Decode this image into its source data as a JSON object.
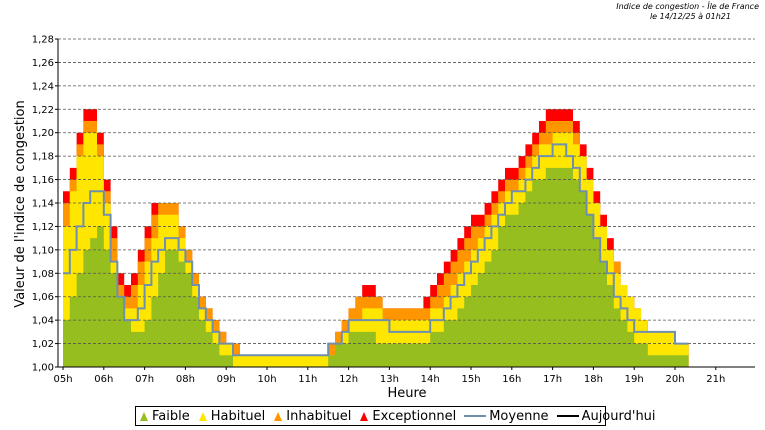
{
  "header": {
    "line1": "Indice de congestion -  Île de France",
    "line2": "le 14/12/25 à 01h21"
  },
  "legend": {
    "items": [
      {
        "label": "Faible",
        "kind": "triangle",
        "color": "#96be1e"
      },
      {
        "label": "Habituel",
        "kind": "triangle",
        "color": "#ffe600"
      },
      {
        "label": "Inhabituel",
        "kind": "triangle",
        "color": "#ff9600"
      },
      {
        "label": "Exceptionnel",
        "kind": "triangle",
        "color": "#ff0000"
      },
      {
        "label": "Moyenne",
        "kind": "line",
        "color": "#6f8faf"
      },
      {
        "label": "Aujourd'hui",
        "kind": "line",
        "color": "#000000"
      }
    ]
  },
  "chart_data": {
    "type": "area",
    "xlabel": "Heure",
    "ylabel": "Valeur de l'indice de congestion",
    "ylim": [
      1.0,
      1.28
    ],
    "xlim": [
      "05h00",
      "21h55"
    ],
    "grid": true,
    "legend_position": "bottom",
    "yticks": [
      "1,00",
      "1,02",
      "1,04",
      "1,06",
      "1,08",
      "1,10",
      "1,12",
      "1,14",
      "1,16",
      "1,18",
      "1,20",
      "1,22",
      "1,24",
      "1,26",
      "1,28"
    ],
    "xticks": [
      "05h",
      "06h",
      "07h",
      "08h",
      "09h",
      "10h",
      "11h",
      "12h",
      "13h",
      "14h",
      "15h",
      "16h",
      "17h",
      "18h",
      "19h",
      "20h",
      "21h"
    ],
    "x_step_minutes": 10,
    "x_start": "05h00",
    "colors": {
      "faible": "#96be1e",
      "habituel": "#ffe600",
      "inhabituel": "#ff9600",
      "exceptionnel": "#ff0000",
      "moyenne": "#6f8faf"
    },
    "series": [
      {
        "name": "Faible",
        "values": [
          1.04,
          1.06,
          1.08,
          1.1,
          1.11,
          1.12,
          1.1,
          1.08,
          1.06,
          1.04,
          1.03,
          1.03,
          1.04,
          1.06,
          1.08,
          1.1,
          1.1,
          1.09,
          1.08,
          1.06,
          1.04,
          1.03,
          1.02,
          1.01,
          1.01,
          1.0,
          1.0,
          1.0,
          1.0,
          1.0,
          1.0,
          1.0,
          1.0,
          1.0,
          1.0,
          1.0,
          1.0,
          1.0,
          1.0,
          1.01,
          1.02,
          1.02,
          1.03,
          1.03,
          1.03,
          1.03,
          1.02,
          1.02,
          1.02,
          1.02,
          1.02,
          1.02,
          1.02,
          1.02,
          1.03,
          1.03,
          1.04,
          1.04,
          1.05,
          1.06,
          1.07,
          1.08,
          1.09,
          1.1,
          1.12,
          1.13,
          1.13,
          1.14,
          1.15,
          1.16,
          1.16,
          1.17,
          1.17,
          1.17,
          1.17,
          1.16,
          1.15,
          1.13,
          1.11,
          1.09,
          1.07,
          1.05,
          1.04,
          1.03,
          1.02,
          1.02,
          1.01,
          1.01,
          1.01,
          1.01,
          1.01,
          1.01
        ]
      },
      {
        "name": "Habituel",
        "values": [
          1.12,
          1.15,
          1.18,
          1.2,
          1.2,
          1.18,
          1.14,
          1.09,
          1.06,
          1.05,
          1.05,
          1.07,
          1.09,
          1.11,
          1.13,
          1.13,
          1.13,
          1.11,
          1.09,
          1.07,
          1.05,
          1.04,
          1.03,
          1.02,
          1.02,
          1.01,
          1.01,
          1.01,
          1.01,
          1.01,
          1.01,
          1.01,
          1.01,
          1.01,
          1.01,
          1.01,
          1.01,
          1.01,
          1.01,
          1.01,
          1.02,
          1.03,
          1.04,
          1.04,
          1.05,
          1.05,
          1.05,
          1.04,
          1.04,
          1.04,
          1.04,
          1.04,
          1.04,
          1.04,
          1.05,
          1.05,
          1.06,
          1.07,
          1.08,
          1.09,
          1.1,
          1.11,
          1.12,
          1.13,
          1.14,
          1.15,
          1.15,
          1.16,
          1.17,
          1.18,
          1.19,
          1.19,
          1.2,
          1.2,
          1.2,
          1.19,
          1.18,
          1.16,
          1.14,
          1.12,
          1.1,
          1.08,
          1.07,
          1.06,
          1.05,
          1.04,
          1.03,
          1.03,
          1.03,
          1.03,
          1.02,
          1.02
        ]
      },
      {
        "name": "Inhabituel",
        "values": [
          1.14,
          1.16,
          1.19,
          1.21,
          1.21,
          1.19,
          1.15,
          1.11,
          1.07,
          1.06,
          1.07,
          1.09,
          1.11,
          1.13,
          1.14,
          1.14,
          1.14,
          1.12,
          1.1,
          1.08,
          1.06,
          1.05,
          1.04,
          1.03,
          1.02,
          1.02,
          1.01,
          1.01,
          1.01,
          1.01,
          1.01,
          1.01,
          1.01,
          1.01,
          1.01,
          1.01,
          1.01,
          1.01,
          1.01,
          1.02,
          1.03,
          1.04,
          1.05,
          1.06,
          1.06,
          1.06,
          1.06,
          1.05,
          1.05,
          1.05,
          1.05,
          1.05,
          1.05,
          1.05,
          1.06,
          1.07,
          1.08,
          1.09,
          1.1,
          1.11,
          1.12,
          1.12,
          1.13,
          1.14,
          1.15,
          1.16,
          1.16,
          1.17,
          1.18,
          1.19,
          1.2,
          1.21,
          1.21,
          1.21,
          1.21,
          1.2,
          1.18,
          1.16,
          1.14,
          1.12,
          1.1,
          1.09,
          1.07,
          1.06,
          1.05,
          1.04,
          1.03,
          1.03,
          1.03,
          1.03,
          1.02,
          1.02
        ]
      },
      {
        "name": "Exceptionnel",
        "values": [
          1.15,
          1.17,
          1.2,
          1.22,
          1.22,
          1.2,
          1.16,
          1.12,
          1.08,
          1.07,
          1.08,
          1.1,
          1.12,
          1.14,
          1.14,
          1.14,
          1.14,
          1.12,
          1.1,
          1.08,
          1.06,
          1.05,
          1.04,
          1.03,
          1.02,
          1.02,
          1.01,
          1.01,
          1.01,
          1.01,
          1.01,
          1.01,
          1.01,
          1.01,
          1.01,
          1.01,
          1.01,
          1.01,
          1.01,
          1.02,
          1.03,
          1.04,
          1.05,
          1.06,
          1.07,
          1.07,
          1.06,
          1.05,
          1.05,
          1.05,
          1.05,
          1.05,
          1.05,
          1.06,
          1.07,
          1.08,
          1.09,
          1.1,
          1.11,
          1.12,
          1.13,
          1.13,
          1.14,
          1.15,
          1.16,
          1.17,
          1.17,
          1.18,
          1.19,
          1.2,
          1.21,
          1.22,
          1.22,
          1.22,
          1.22,
          1.21,
          1.19,
          1.17,
          1.15,
          1.13,
          1.11,
          1.09,
          1.07,
          1.06,
          1.05,
          1.04,
          1.03,
          1.03,
          1.03,
          1.03,
          1.02,
          1.02
        ]
      },
      {
        "name": "Moyenne",
        "values": [
          1.08,
          1.1,
          1.12,
          1.14,
          1.15,
          1.15,
          1.13,
          1.09,
          1.06,
          1.04,
          1.04,
          1.05,
          1.07,
          1.09,
          1.1,
          1.11,
          1.11,
          1.1,
          1.09,
          1.07,
          1.05,
          1.04,
          1.03,
          1.02,
          1.02,
          1.01,
          1.01,
          1.01,
          1.01,
          1.01,
          1.01,
          1.01,
          1.01,
          1.01,
          1.01,
          1.01,
          1.01,
          1.01,
          1.01,
          1.02,
          1.02,
          1.03,
          1.04,
          1.04,
          1.04,
          1.04,
          1.04,
          1.04,
          1.03,
          1.03,
          1.03,
          1.03,
          1.03,
          1.03,
          1.04,
          1.04,
          1.05,
          1.06,
          1.07,
          1.08,
          1.09,
          1.1,
          1.11,
          1.12,
          1.13,
          1.14,
          1.15,
          1.15,
          1.16,
          1.17,
          1.18,
          1.18,
          1.19,
          1.19,
          1.18,
          1.17,
          1.15,
          1.13,
          1.11,
          1.09,
          1.08,
          1.06,
          1.05,
          1.04,
          1.03,
          1.03,
          1.03,
          1.03,
          1.03,
          1.03,
          1.02,
          1.02
        ]
      }
    ]
  }
}
